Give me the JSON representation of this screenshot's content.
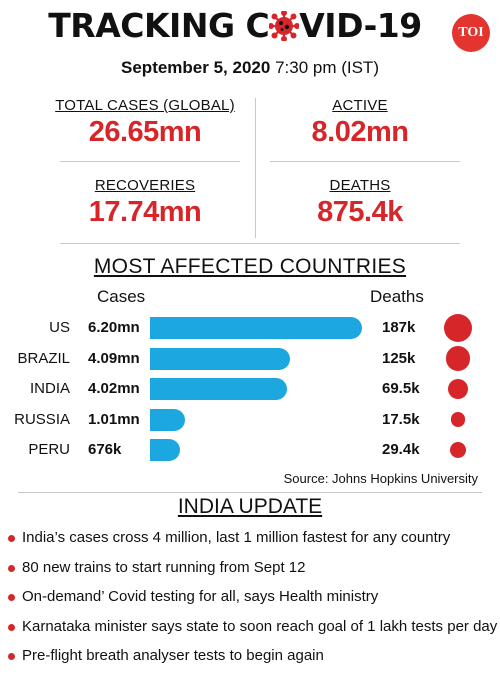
{
  "header": {
    "title_left": "TRACKING C",
    "title_right": "VID-19",
    "virus_icon": "coronavirus-icon",
    "logo_text": "TOI",
    "date_bold": "September 5, 2020",
    "time": "7:30 pm (IST)"
  },
  "stats": [
    {
      "label": "TOTAL CASES (GLOBAL)",
      "value": "26.65mn"
    },
    {
      "label": "ACTIVE",
      "value": "8.02mn"
    },
    {
      "label": "RECOVERIES",
      "value": "17.74mn"
    },
    {
      "label": "DEATHS",
      "value": "875.4k"
    }
  ],
  "chart_data": {
    "type": "bar",
    "title": "MOST AFFECTED COUNTRIES",
    "orientation": "horizontal",
    "categories": [
      "US",
      "BRAZIL",
      "INDIA",
      "RUSSIA",
      "PERU"
    ],
    "series": [
      {
        "name": "Cases",
        "values": [
          6.2,
          4.09,
          4.02,
          1.01,
          0.676
        ],
        "labels": [
          "6.20mn",
          "4.09mn",
          "4.02mn",
          "1.01mn",
          "676k"
        ]
      },
      {
        "name": "Deaths",
        "values": [
          187,
          125,
          69.5,
          17.5,
          29.4
        ],
        "labels": [
          "187k",
          "125k",
          "69.5k",
          "17.5k",
          "29.4k"
        ]
      }
    ],
    "cases_unit": "mn",
    "deaths_unit": "k",
    "colors": {
      "bars": "#1ca7e1",
      "dots": "#d7262a"
    },
    "source": "Source: Johns Hopkins University"
  },
  "india_update": {
    "title": "INDIA UPDATE",
    "items": [
      "India’s cases cross 4 million, last 1 million fastest for any country",
      "80 new trains to start running from Sept 12",
      "On-demand’ Covid testing for all, says Health ministry",
      "Karnataka minister says state to soon reach goal of 1 lakh tests per day",
      "Pre-flight breath analyser tests to begin again"
    ]
  },
  "colors": {
    "accent": "#d7262a",
    "bar": "#1ca7e1",
    "logo": "#e3342f"
  }
}
